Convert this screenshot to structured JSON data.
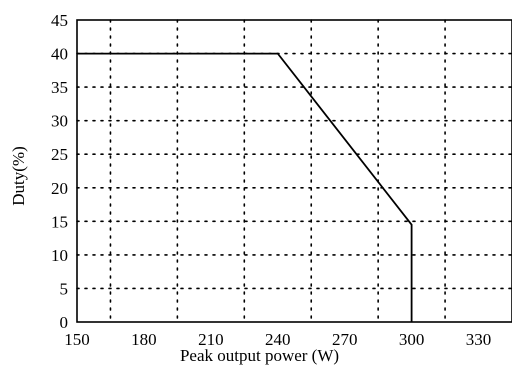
{
  "chart_data": {
    "type": "line",
    "title": "",
    "xlabel": "Peak output power (W)",
    "ylabel": "Duty(%)",
    "xlim": [
      150,
      345
    ],
    "ylim": [
      0,
      45
    ],
    "xticks": [
      150,
      180,
      210,
      240,
      270,
      300,
      330
    ],
    "yticks": [
      0,
      5,
      10,
      15,
      20,
      25,
      30,
      35,
      40,
      45
    ],
    "x_gridlines": [
      165,
      195,
      225,
      255,
      285,
      315,
      345
    ],
    "y_gridlines": [
      5,
      10,
      15,
      20,
      25,
      30,
      35,
      40
    ],
    "grid": true,
    "grid_style": "dotted",
    "series": [
      {
        "x": [
          150,
          240,
          300,
          300
        ],
        "y": [
          40,
          40,
          14.5,
          0
        ]
      }
    ]
  }
}
